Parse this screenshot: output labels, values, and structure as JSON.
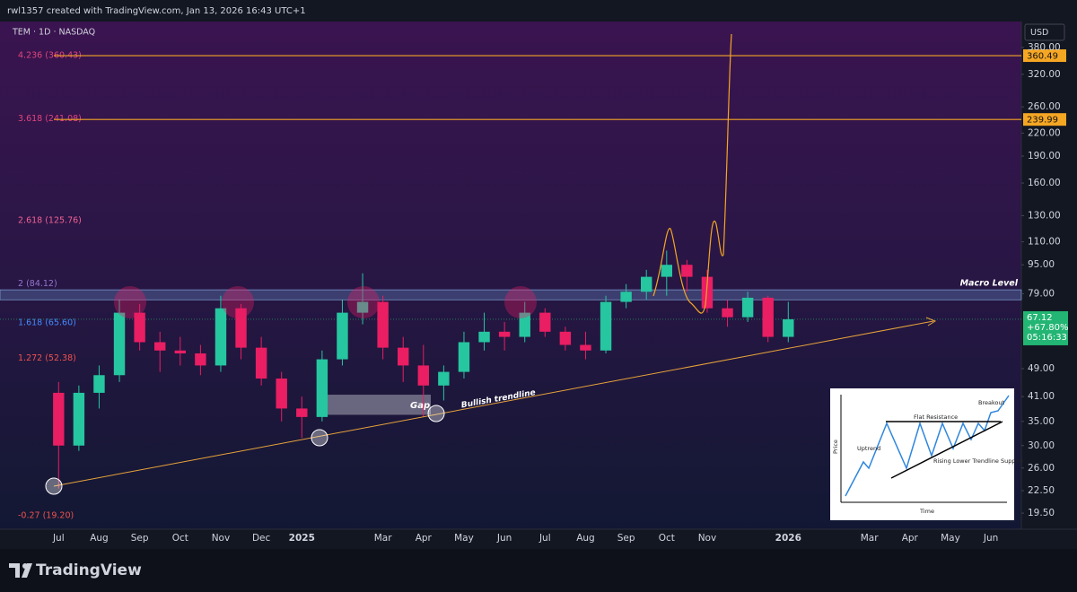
{
  "header": {
    "attribution": "rwl1357 created with TradingView.com, Jan 13, 2026 16:43 UTC+1",
    "symbol": "TEM · 1D · NASDAQ",
    "currency": "USD"
  },
  "footer": {
    "logo_text": "TradingView"
  },
  "inset": {
    "breakout": "Breakout",
    "flat_resistance": "Flat Resistance",
    "uptrend": "Uptrend",
    "support": "Rising Lower Trendline Support",
    "y_label": "Price",
    "x_label": "Time"
  },
  "chart_data": {
    "type": "candlestick",
    "log": true,
    "grid": false,
    "up_color": "#26c6a0",
    "down_color": "#e91e63",
    "ylim": [
      17.6,
      433
    ],
    "yticks": [
      {
        "value": 19.5,
        "label": "19.50"
      },
      {
        "value": 22.5,
        "label": "22.50"
      },
      {
        "value": 26,
        "label": "26.00"
      },
      {
        "value": 30,
        "label": "30.00"
      },
      {
        "value": 35,
        "label": "35.00"
      },
      {
        "value": 41,
        "label": "41.00"
      },
      {
        "value": 49,
        "label": "49.00"
      },
      {
        "value": 79,
        "label": "79.00"
      },
      {
        "value": 95,
        "label": "95.00"
      },
      {
        "value": 110,
        "label": "110.00"
      },
      {
        "value": 130,
        "label": "130.00"
      },
      {
        "value": 160,
        "label": "160.00"
      },
      {
        "value": 190,
        "label": "190.00"
      },
      {
        "value": 220,
        "label": "220.00"
      },
      {
        "value": 260,
        "label": "260.00"
      },
      {
        "value": 320,
        "label": "320.00"
      },
      {
        "value": 380,
        "label": "380.00"
      }
    ],
    "categories": [
      "Jul",
      null,
      "Aug",
      null,
      "Sep",
      null,
      "Oct",
      null,
      "Nov",
      null,
      "Dec",
      null,
      "2025",
      null,
      null,
      null,
      "Mar",
      null,
      "Apr",
      null,
      "May",
      null,
      "Jun",
      null,
      "Jul",
      null,
      "Aug",
      null,
      "Sep",
      null,
      "Oct",
      null,
      "Nov",
      null,
      null,
      null,
      "2026",
      null,
      null,
      null,
      "Mar",
      null,
      "Apr",
      null,
      "May",
      null,
      "Jun",
      null
    ],
    "open": [
      42,
      30,
      42,
      47,
      70,
      58,
      55,
      54,
      50,
      72,
      56,
      46,
      38,
      36,
      52,
      70,
      75,
      56,
      50,
      44,
      48,
      58,
      62,
      60,
      70,
      62,
      57,
      55,
      75,
      80,
      88,
      95,
      88,
      72,
      68,
      77,
      60,
      null,
      null,
      null,
      null,
      null,
      null,
      null,
      null,
      null,
      null,
      null
    ],
    "high": [
      45,
      44,
      50,
      76,
      74,
      62,
      60,
      57,
      78,
      74,
      60,
      48,
      41,
      55,
      76,
      90,
      78,
      60,
      57,
      50,
      62,
      70,
      66,
      75,
      72,
      64,
      62,
      78,
      84,
      92,
      104,
      98,
      92,
      76,
      80,
      78,
      75,
      null,
      null,
      null,
      null,
      null,
      null,
      null,
      null,
      null,
      null,
      null
    ],
    "low": [
      22.8,
      29,
      38,
      45,
      55,
      48,
      50,
      47,
      48,
      52,
      44,
      35,
      31.5,
      35,
      50,
      65,
      52,
      45,
      36,
      40,
      46,
      55,
      55,
      58,
      60,
      55,
      52,
      54,
      72,
      76,
      78,
      80,
      70,
      64,
      66,
      58,
      58,
      null,
      null,
      null,
      null,
      null,
      null,
      null,
      null,
      null,
      null,
      null
    ],
    "close": [
      30,
      42,
      47,
      70,
      58,
      55,
      54,
      50,
      72,
      56,
      46,
      38,
      36,
      52,
      70,
      75,
      56,
      50,
      44,
      48,
      58,
      62,
      60,
      70,
      62,
      57,
      55,
      75,
      80,
      88,
      95,
      88,
      72,
      68,
      77,
      60,
      67.12,
      null,
      null,
      null,
      null,
      null,
      null,
      null,
      null,
      null,
      null,
      null
    ],
    "fib_levels": [
      {
        "value": 360.43,
        "label": "4.236 (360.43)",
        "color": "#e0457b"
      },
      {
        "value": 241.08,
        "label": "3.618 (241.08)",
        "color": "#e0457b"
      },
      {
        "value": 125.76,
        "label": "2.618 (125.76)",
        "color": "#f06292"
      },
      {
        "value": 84.12,
        "label": "2 (84.12)",
        "color": "#9575cd"
      },
      {
        "value": 65.6,
        "label": "1.618 (65.60)",
        "color": "#448aff"
      },
      {
        "value": 52.38,
        "label": "1.272 (52.38)",
        "color": "#ef5350"
      },
      {
        "value": 19.2,
        "label": "-0.27 (19.20)",
        "color": "#ef5350"
      }
    ],
    "target_lines": [
      {
        "value": 360.49,
        "color": "#f5a623"
      },
      {
        "value": 239.99,
        "color": "#f5a623"
      }
    ],
    "macro_level": {
      "label": "Macro Level",
      "low": 76,
      "high": 81
    },
    "gap": {
      "label": "Gap",
      "low": 36.5,
      "high": 41.5
    },
    "trendline": {
      "label": "Bullish trendline"
    },
    "last_price": {
      "value": 67.12,
      "change": "+67.80%",
      "countdown": "05:16:33",
      "color": "#22b573"
    }
  }
}
